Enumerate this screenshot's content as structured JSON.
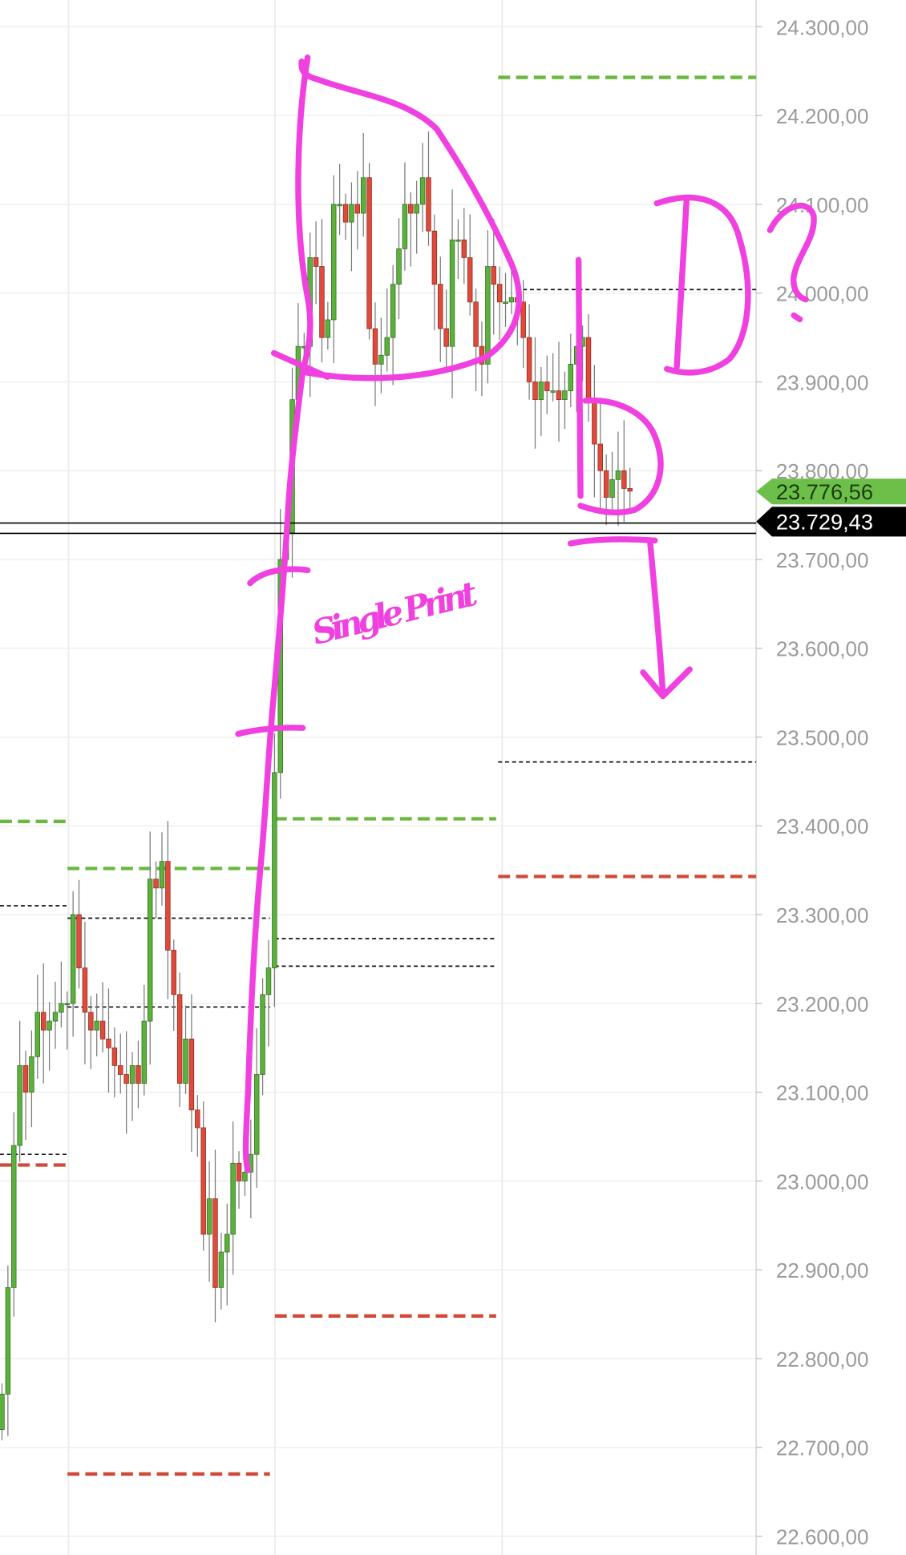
{
  "chart_data": {
    "type": "candlestick",
    "title": "",
    "xlabel": "",
    "ylabel": "",
    "ylim": [
      22600,
      24300
    ],
    "grid": true,
    "y_ticks": [
      "24.300,00",
      "24.200,00",
      "24.100,00",
      "24.000,00",
      "23.900,00",
      "23.800,00",
      "23.700,00",
      "23.600,00",
      "23.500,00",
      "23.400,00",
      "23.300,00",
      "23.200,00",
      "23.100,00",
      "23.000,00",
      "22.900,00",
      "22.800,00",
      "22.700,00",
      "22.600,00"
    ],
    "y_tick_values": [
      24300,
      24200,
      24100,
      24000,
      23900,
      23800,
      23700,
      23600,
      23500,
      23400,
      23300,
      23200,
      23100,
      23000,
      22900,
      22800,
      22700,
      22600
    ],
    "closes": [
      22760,
      22880,
      23040,
      23130,
      23100,
      23140,
      23190,
      23170,
      23180,
      23190,
      23200,
      23200,
      23300,
      23240,
      23190,
      23170,
      23180,
      23160,
      23150,
      23130,
      23120,
      23110,
      23130,
      23110,
      23180,
      23340,
      23330,
      23360,
      23260,
      23210,
      23110,
      23160,
      23080,
      23060,
      22940,
      22980,
      22880,
      22920,
      22940,
      23020,
      23000,
      23010,
      23030,
      23120,
      23210,
      23240,
      23460,
      23700,
      23730,
      23880,
      23940,
      23940,
      24040,
      24030,
      23950,
      23970,
      24100,
      24100,
      24080,
      24100,
      24090,
      24130,
      23960,
      23920,
      23930,
      23950,
      24010,
      24050,
      24100,
      24090,
      24100,
      24130,
      24070,
      24010,
      23960,
      23940,
      24060,
      24060,
      24040,
      23990,
      23940,
      23920,
      24030,
      24010,
      23990,
      23990,
      23995,
      23990,
      23950,
      23900,
      23880,
      23900,
      23890,
      23890,
      23880,
      23890,
      23920,
      23940,
      23950,
      23880,
      23830,
      23800,
      23770,
      23790,
      23800,
      23780,
      23777
    ],
    "levels": [
      {
        "price": 23405,
        "style": "green-dashed",
        "session": 0
      },
      {
        "price": 23310,
        "style": "black-dotted",
        "session": 0
      },
      {
        "price": 23030,
        "style": "black-dotted",
        "session": 0
      },
      {
        "price": 23018,
        "style": "red-dashed",
        "session": 0
      },
      {
        "price": 23352,
        "style": "green-dashed",
        "session": 1
      },
      {
        "price": 23296,
        "style": "black-dotted",
        "session": 1
      },
      {
        "price": 23196,
        "style": "black-dotted",
        "session": 1
      },
      {
        "price": 22670,
        "style": "red-dashed",
        "session": 1
      },
      {
        "price": 23408,
        "style": "green-dashed",
        "session": 2
      },
      {
        "price": 23273,
        "style": "black-dotted",
        "session": 2
      },
      {
        "price": 23242,
        "style": "black-dotted",
        "session": 2
      },
      {
        "price": 22848,
        "style": "red-dashed",
        "session": 2
      },
      {
        "price": 24243,
        "style": "green-dashed",
        "session": 3
      },
      {
        "price": 24004,
        "style": "black-dotted",
        "session": 3
      },
      {
        "price": 23472,
        "style": "black-dotted",
        "session": 3
      },
      {
        "price": 23343,
        "style": "red-dashed",
        "session": 3
      }
    ],
    "horizontal_lines": [
      23741,
      23729.43
    ],
    "price_tags": [
      {
        "label": "23.776,56",
        "price": 23776.56,
        "color": "#6cc04a",
        "text_color": "#1b3b10"
      },
      {
        "label": "23.729,43",
        "price": 23729.43,
        "color": "#000000",
        "text_color": "#ffffff"
      }
    ],
    "colors": {
      "up": "#5cb03c",
      "down": "#e04a3a",
      "wick": "#7a7a7a",
      "grid": "#ececec",
      "annotation": "#f040e0",
      "level_green": "#6ab83f",
      "level_red": "#d04a3a"
    },
    "annotations": {
      "single_print": "Single Print"
    }
  }
}
